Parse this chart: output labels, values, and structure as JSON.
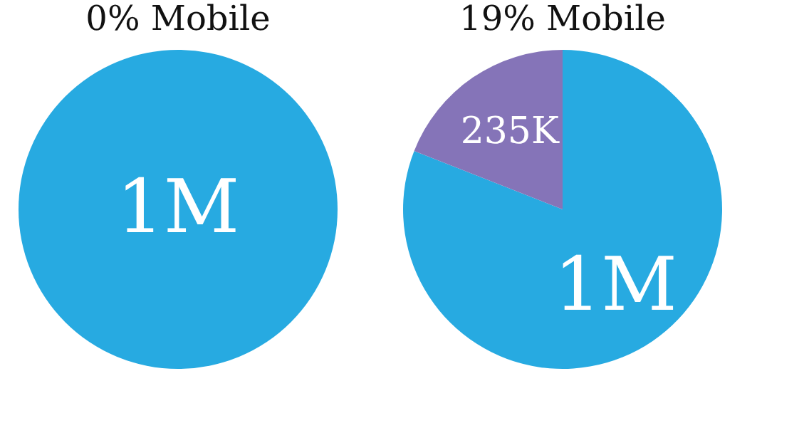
{
  "chart_data": [
    {
      "type": "pie",
      "title": "0% Mobile",
      "categories": [
        null
      ],
      "values": [
        1000000
      ],
      "colors": [
        "#27aae1"
      ],
      "value_labels": [
        "1M"
      ]
    },
    {
      "type": "pie",
      "title": "19% Mobile",
      "categories": [
        null,
        null
      ],
      "values": [
        1000000,
        235000
      ],
      "colors": [
        "#27aae1",
        "#8574b8"
      ],
      "value_labels": [
        "1M",
        "235K"
      ]
    }
  ]
}
